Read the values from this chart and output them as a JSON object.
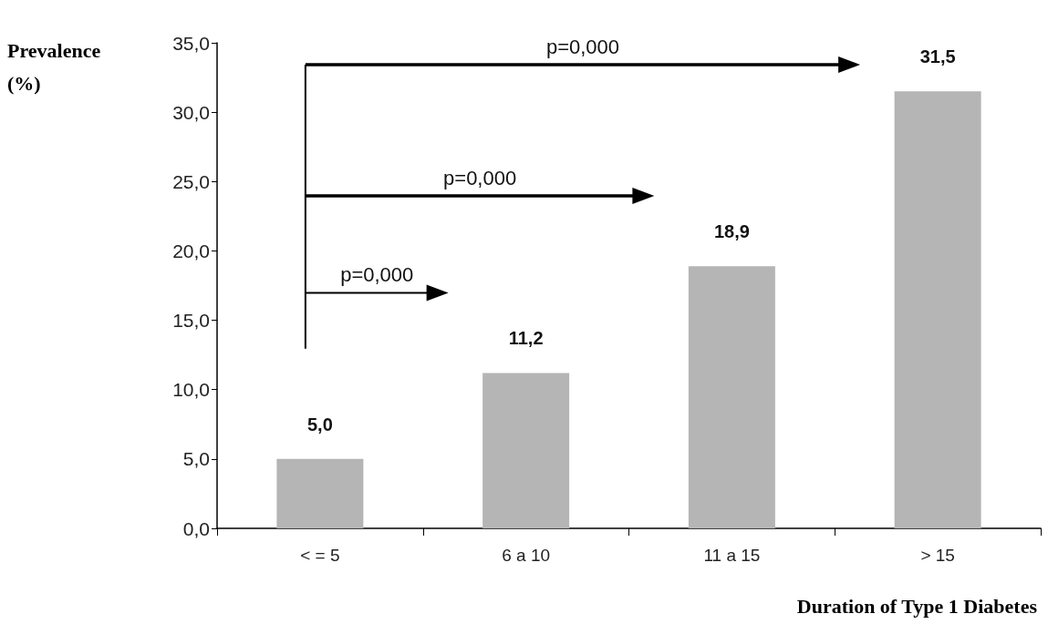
{
  "chart_data": {
    "type": "bar",
    "ylabel": "Prevalence (%)",
    "xlabel": "Duration of Type 1 Diabetes",
    "categories": [
      "< = 5",
      "6 a 10",
      "11 a 15",
      "> 15"
    ],
    "values": [
      5.0,
      11.2,
      18.9,
      31.5
    ],
    "value_labels": [
      "5,0",
      "11,2",
      "18,9",
      "31,5"
    ],
    "color": "#b5b5b5",
    "ylim": [
      0,
      35
    ],
    "yticks": [
      {
        "value": 0,
        "label": "0,0"
      },
      {
        "value": 5,
        "label": "5,0"
      },
      {
        "value": 10,
        "label": "10,0"
      },
      {
        "value": 15,
        "label": "15,0"
      },
      {
        "value": 20,
        "label": "20,0"
      },
      {
        "value": 25,
        "label": "25,0"
      },
      {
        "value": 30,
        "label": "30,0"
      },
      {
        "value": 35,
        "label": "35,0"
      }
    ],
    "annotations": [
      "p=0,000",
      "p=0,000",
      "p=0,000"
    ]
  }
}
